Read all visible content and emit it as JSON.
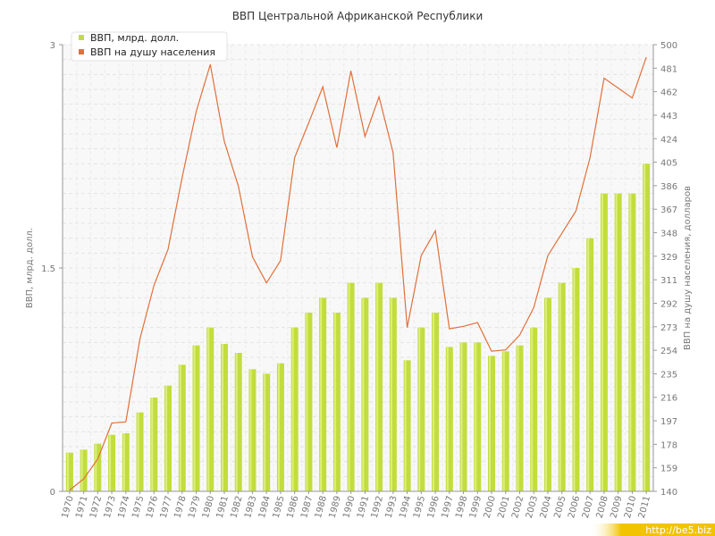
{
  "chart_data": {
    "type": "bar",
    "title": "ВВП Центральной Африканской Республики",
    "ylabel": "ВВП, млрд. долл.",
    "y2label": "ВВП на душу населения, долларов",
    "ylim": [
      0,
      3
    ],
    "y2lim": [
      140,
      500
    ],
    "yticks": [
      "0",
      "1.5",
      "3"
    ],
    "y2ticks": [
      "140",
      "159",
      "178",
      "197",
      "216",
      "235",
      "254",
      "273",
      "292",
      "311",
      "329",
      "348",
      "367",
      "386",
      "405",
      "424",
      "443",
      "462",
      "481",
      "500"
    ],
    "grid": true,
    "legend_position": "top-left",
    "categories": [
      "1970",
      "1971",
      "1972",
      "1973",
      "1974",
      "1975",
      "1976",
      "1977",
      "1978",
      "1979",
      "1980",
      "1981",
      "1982",
      "1983",
      "1984",
      "1985",
      "1986",
      "1987",
      "1988",
      "1989",
      "1990",
      "1991",
      "1992",
      "1993",
      "1994",
      "1995",
      "1996",
      "1997",
      "1998",
      "1999",
      "2000",
      "2001",
      "2002",
      "2003",
      "2004",
      "2005",
      "2006",
      "2007",
      "2008",
      "2009",
      "2010",
      "2011"
    ],
    "series": [
      {
        "name": "ВВП, млрд. долл.",
        "type": "bar",
        "axis": "left",
        "color": "#c2dd3c",
        "values": [
          0.26,
          0.28,
          0.32,
          0.38,
          0.39,
          0.53,
          0.63,
          0.71,
          0.85,
          0.98,
          1.1,
          0.99,
          0.93,
          0.82,
          0.79,
          0.86,
          1.1,
          1.2,
          1.3,
          1.2,
          1.4,
          1.3,
          1.4,
          1.3,
          0.88,
          1.1,
          1.2,
          0.97,
          1.0,
          1.0,
          0.91,
          0.94,
          0.98,
          1.1,
          1.3,
          1.4,
          1.5,
          1.7,
          2.0,
          2.0,
          2.0,
          2.2
        ]
      },
      {
        "name": "ВВП на душу населения",
        "type": "line",
        "axis": "right",
        "color": "#e0703a",
        "values": [
          141,
          150,
          166,
          195,
          196,
          263,
          306,
          335,
          393,
          446,
          484,
          422,
          386,
          329,
          308,
          326,
          409,
          437,
          466,
          417,
          479,
          426,
          458,
          413,
          272,
          330,
          350,
          271,
          273,
          276,
          253,
          254,
          266,
          288,
          330,
          348,
          366,
          409,
          473,
          465,
          457,
          490
        ]
      }
    ]
  },
  "watermark": {
    "text": "http://be5.biz"
  }
}
